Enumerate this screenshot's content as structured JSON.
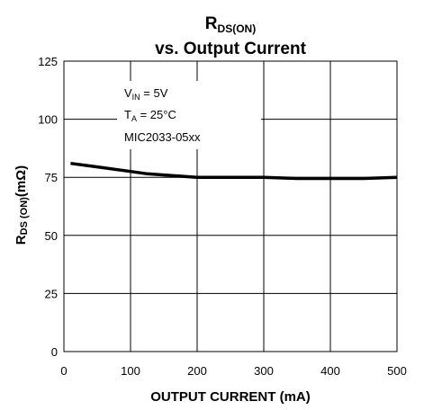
{
  "chart_data": {
    "type": "line",
    "title_line1": {
      "main": "R",
      "sub": "DS(ON)"
    },
    "title_line2": "vs. Output Current",
    "xlabel": "OUTPUT CURRENT (mA)",
    "ylabel": {
      "main": "R",
      "sub": "DS (ON)",
      "rest": "(mΩ)"
    },
    "xlim": [
      0,
      500
    ],
    "ylim": [
      0,
      125
    ],
    "x_ticks": [
      0,
      100,
      200,
      300,
      400,
      500
    ],
    "y_ticks": [
      0,
      25,
      50,
      75,
      100,
      125
    ],
    "grid": true,
    "annotation": [
      {
        "main": "V",
        "sub": "IN",
        "rest": " = 5V"
      },
      {
        "main": "T",
        "sub": "A",
        "rest": " = 25°C"
      },
      {
        "main": "MIC2033-05xx",
        "sub": "",
        "rest": ""
      }
    ],
    "series": [
      {
        "color": "#000000",
        "x": [
          10,
          50,
          100,
          125,
          150,
          200,
          250,
          300,
          350,
          400,
          450,
          500
        ],
        "y": [
          81,
          79.5,
          77.5,
          76.5,
          76,
          75,
          75,
          75,
          74.5,
          74.5,
          74.5,
          75
        ]
      }
    ]
  }
}
